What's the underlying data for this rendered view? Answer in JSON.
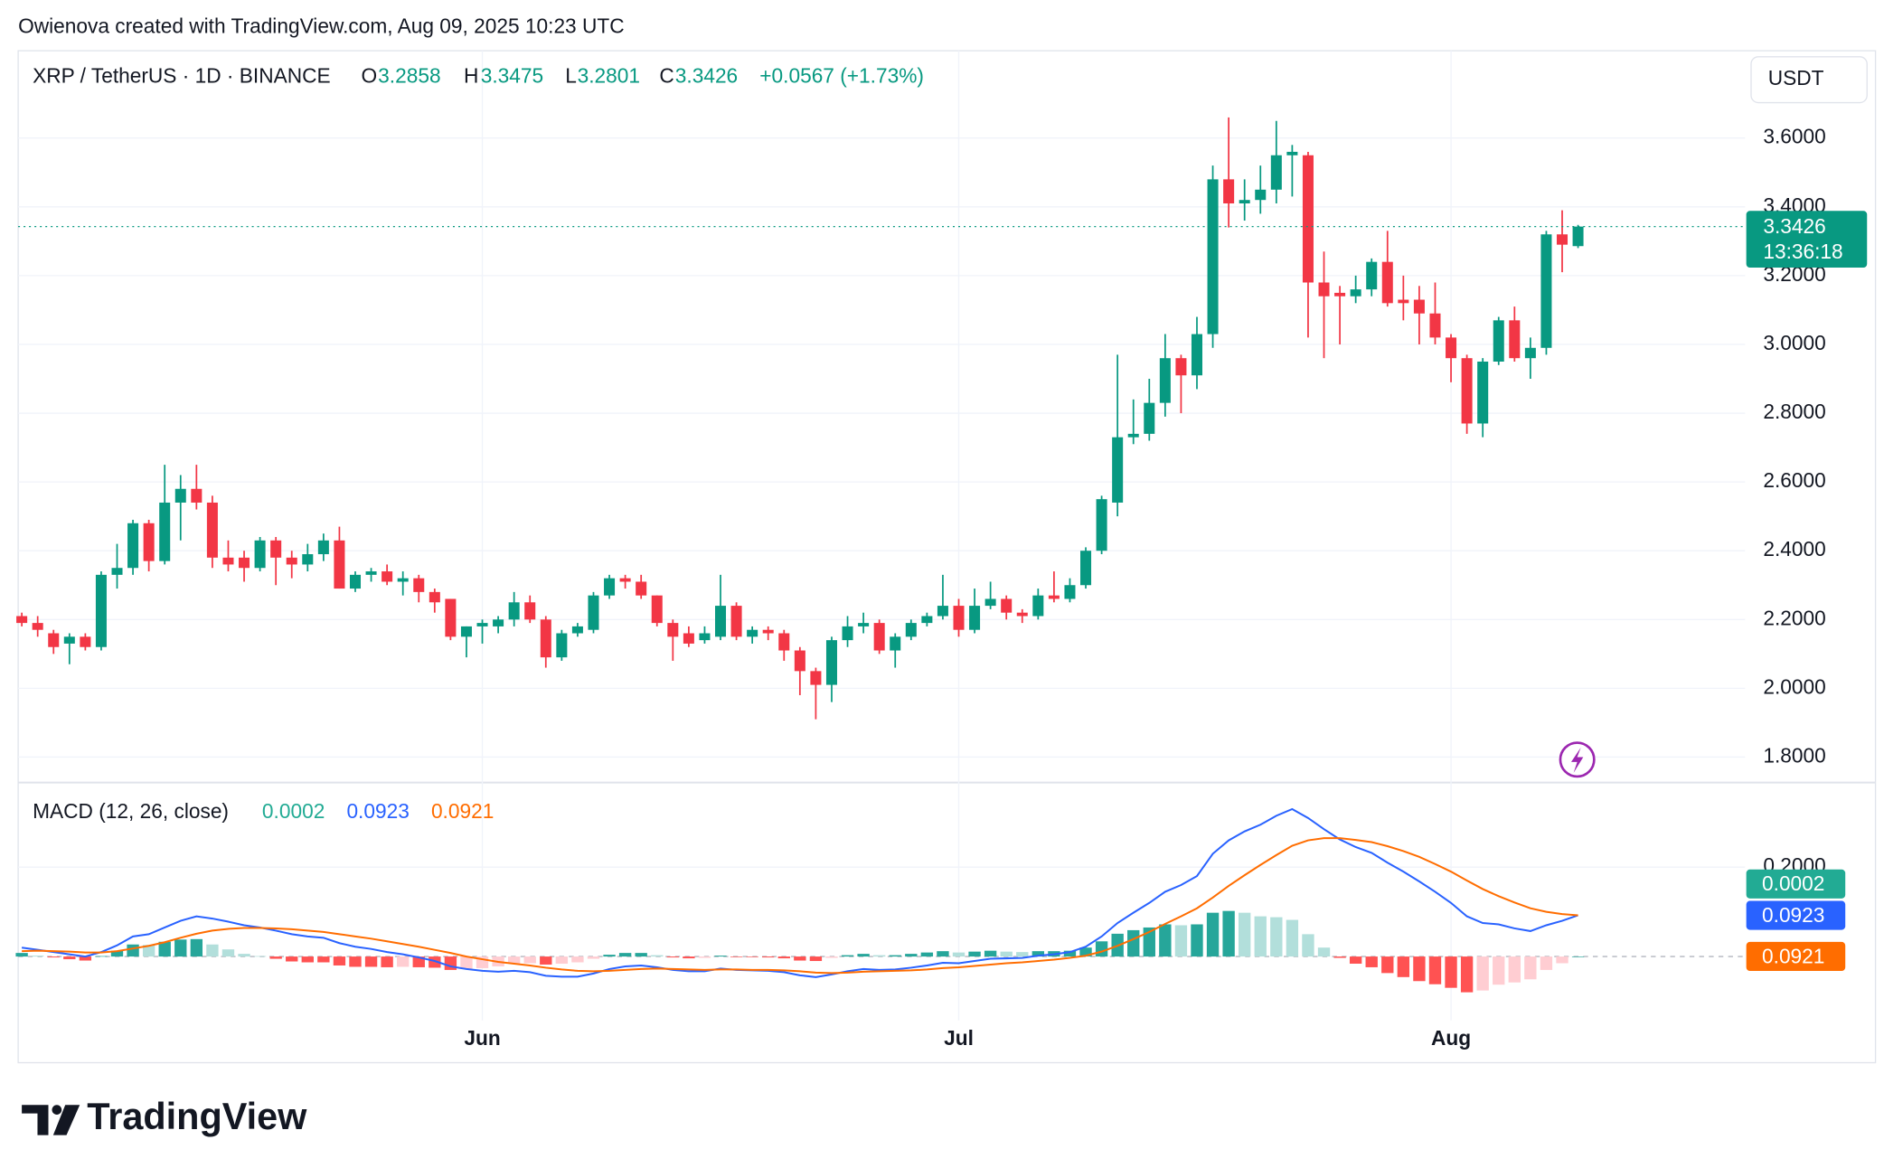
{
  "header": {
    "attribution": "Owienova created with TradingView.com, Aug 09, 2025 10:23 UTC",
    "logo": "TradingView"
  },
  "chart_data": [
    {
      "type": "candlestick",
      "title": "XRP / TetherUS · 1D · BINANCE",
      "ohlc_labels": [
        "O",
        "H",
        "L",
        "C"
      ],
      "change": "+0.0567 (+1.73%)",
      "currency": "USDT",
      "countdown": "13:36:18",
      "categories": [
        null,
        null,
        null,
        null,
        null,
        null,
        null,
        null,
        null,
        null,
        null,
        null,
        null,
        null,
        null,
        null,
        null,
        null,
        null,
        null,
        null,
        null,
        null,
        null,
        null,
        null,
        null,
        null,
        null,
        "Jun",
        null,
        null,
        null,
        null,
        null,
        null,
        null,
        null,
        null,
        null,
        null,
        null,
        null,
        null,
        null,
        null,
        null,
        null,
        null,
        null,
        null,
        null,
        null,
        null,
        null,
        null,
        null,
        null,
        null,
        "Jul",
        null,
        null,
        null,
        null,
        null,
        null,
        null,
        null,
        null,
        null,
        null,
        null,
        null,
        null,
        null,
        null,
        null,
        null,
        null,
        null,
        null,
        null,
        null,
        null,
        null,
        null,
        null,
        null,
        null,
        null,
        "Aug",
        null,
        null,
        null,
        null,
        null,
        null,
        null,
        null
      ],
      "open": [
        2.21,
        2.19,
        2.16,
        2.13,
        2.15,
        2.12,
        2.33,
        2.35,
        2.48,
        2.37,
        2.54,
        2.58,
        2.54,
        2.38,
        2.38,
        2.35,
        2.43,
        2.38,
        2.36,
        2.39,
        2.43,
        2.29,
        2.33,
        2.34,
        2.31,
        2.32,
        2.28,
        2.26,
        2.15,
        2.18,
        2.18,
        2.2,
        2.25,
        2.2,
        2.09,
        2.16,
        2.17,
        2.27,
        2.32,
        2.31,
        2.27,
        2.19,
        2.16,
        2.14,
        2.15,
        2.24,
        2.15,
        2.17,
        2.16,
        2.11,
        2.05,
        2.01,
        2.14,
        2.18,
        2.19,
        2.11,
        2.15,
        2.19,
        2.21,
        2.24,
        2.17,
        2.24,
        2.26,
        2.22,
        2.21,
        2.27,
        2.26,
        2.3,
        2.4,
        2.54,
        2.73,
        2.74,
        2.83,
        2.96,
        2.91,
        3.03,
        3.48,
        3.41,
        3.42,
        3.45,
        3.55,
        3.55,
        3.18,
        3.15,
        3.14,
        3.16,
        3.24,
        3.13,
        3.13,
        3.09,
        3.02,
        2.96,
        2.77,
        2.95,
        3.07,
        2.96,
        2.99,
        3.32,
        3.2858
      ],
      "high": [
        2.22,
        2.21,
        2.17,
        2.16,
        2.16,
        2.34,
        2.42,
        2.49,
        2.49,
        2.65,
        2.62,
        2.65,
        2.56,
        2.43,
        2.4,
        2.44,
        2.44,
        2.4,
        2.42,
        2.45,
        2.47,
        2.34,
        2.35,
        2.36,
        2.34,
        2.33,
        2.29,
        2.26,
        2.18,
        2.2,
        2.21,
        2.28,
        2.27,
        2.21,
        2.17,
        2.19,
        2.28,
        2.33,
        2.33,
        2.33,
        2.27,
        2.2,
        2.18,
        2.18,
        2.33,
        2.25,
        2.18,
        2.18,
        2.17,
        2.12,
        2.06,
        2.15,
        2.21,
        2.22,
        2.2,
        2.16,
        2.2,
        2.22,
        2.33,
        2.26,
        2.29,
        2.31,
        2.27,
        2.23,
        2.29,
        2.34,
        2.32,
        2.41,
        2.56,
        2.97,
        2.84,
        2.9,
        3.03,
        2.97,
        3.08,
        3.52,
        3.66,
        3.48,
        3.52,
        3.65,
        3.58,
        3.56,
        3.27,
        3.17,
        3.2,
        3.25,
        3.33,
        3.2,
        3.17,
        3.18,
        3.03,
        2.97,
        2.96,
        3.08,
        3.11,
        3.02,
        3.33,
        3.39,
        3.3475
      ],
      "low": [
        2.18,
        2.15,
        2.1,
        2.07,
        2.11,
        2.11,
        2.29,
        2.33,
        2.34,
        2.36,
        2.43,
        2.52,
        2.35,
        2.34,
        2.31,
        2.34,
        2.3,
        2.32,
        2.34,
        2.37,
        2.29,
        2.28,
        2.31,
        2.3,
        2.27,
        2.25,
        2.22,
        2.14,
        2.09,
        2.13,
        2.16,
        2.18,
        2.19,
        2.06,
        2.08,
        2.15,
        2.16,
        2.26,
        2.29,
        2.26,
        2.18,
        2.08,
        2.12,
        2.13,
        2.14,
        2.14,
        2.13,
        2.14,
        2.08,
        1.98,
        1.91,
        1.96,
        2.12,
        2.16,
        2.1,
        2.06,
        2.14,
        2.18,
        2.2,
        2.15,
        2.16,
        2.23,
        2.2,
        2.19,
        2.2,
        2.25,
        2.25,
        2.29,
        2.39,
        2.5,
        2.71,
        2.72,
        2.79,
        2.8,
        2.87,
        2.99,
        3.34,
        3.36,
        3.38,
        3.41,
        3.43,
        3.02,
        2.96,
        3.0,
        3.12,
        3.14,
        3.11,
        3.07,
        3.0,
        3.0,
        2.89,
        2.74,
        2.73,
        2.94,
        2.95,
        2.9,
        2.97,
        3.21,
        3.2801
      ],
      "close": [
        2.19,
        2.17,
        2.12,
        2.15,
        2.12,
        2.33,
        2.35,
        2.48,
        2.37,
        2.54,
        2.58,
        2.54,
        2.38,
        2.36,
        2.35,
        2.43,
        2.38,
        2.36,
        2.39,
        2.43,
        2.29,
        2.33,
        2.34,
        2.31,
        2.32,
        2.28,
        2.25,
        2.15,
        2.18,
        2.19,
        2.2,
        2.25,
        2.2,
        2.09,
        2.16,
        2.18,
        2.27,
        2.32,
        2.31,
        2.27,
        2.19,
        2.15,
        2.13,
        2.16,
        2.24,
        2.15,
        2.17,
        2.16,
        2.11,
        2.05,
        2.01,
        2.14,
        2.18,
        2.19,
        2.11,
        2.15,
        2.19,
        2.21,
        2.24,
        2.17,
        2.24,
        2.26,
        2.22,
        2.21,
        2.27,
        2.26,
        2.3,
        2.4,
        2.55,
        2.73,
        2.74,
        2.83,
        2.96,
        2.91,
        3.03,
        3.48,
        3.41,
        3.42,
        3.45,
        3.55,
        3.56,
        3.18,
        3.14,
        3.14,
        3.16,
        3.24,
        3.12,
        3.12,
        3.09,
        3.02,
        2.96,
        2.77,
        2.95,
        3.07,
        2.96,
        2.99,
        3.32,
        3.29,
        3.3426
      ],
      "colors": {
        "up": "#089981",
        "down": "#f23645"
      },
      "ylim": [
        1.726,
        3.854
      ],
      "yticks": [
        {
          "value": 1.8,
          "label": "1.8000"
        },
        {
          "value": 2.0,
          "label": "2.0000"
        },
        {
          "value": 2.2,
          "label": "2.2000"
        },
        {
          "value": 2.4,
          "label": "2.4000"
        },
        {
          "value": 2.6,
          "label": "2.6000"
        },
        {
          "value": 2.8,
          "label": "2.8000"
        },
        {
          "value": 3.0,
          "label": "3.0000"
        },
        {
          "value": 3.2,
          "label": "3.2000"
        },
        {
          "value": 3.4,
          "label": "3.4000"
        },
        {
          "value": 3.6,
          "label": "3.6000"
        }
      ],
      "grid": true
    },
    {
      "type": "macd",
      "title": "MACD (12, 26, close)",
      "series": [
        {
          "kind": "histogram",
          "color": "#22ab94",
          "colors": [
            "#26a69a",
            "#b2dfdb",
            "#ff5252",
            "#ffcdd2"
          ],
          "values": [
            0.008,
            0.002,
            -0.002,
            -0.006,
            -0.009,
            0.001,
            0.013,
            0.027,
            0.026,
            0.033,
            0.038,
            0.039,
            0.027,
            0.016,
            0.006,
            0.001,
            -0.005,
            -0.011,
            -0.013,
            -0.013,
            -0.02,
            -0.023,
            -0.023,
            -0.024,
            -0.023,
            -0.024,
            -0.025,
            -0.03,
            -0.028,
            -0.026,
            -0.022,
            -0.016,
            -0.015,
            -0.018,
            -0.016,
            -0.013,
            -0.005,
            0.004,
            0.008,
            0.008,
            0.003,
            -0.002,
            -0.004,
            -0.003,
            0.002,
            -0.001,
            -0.001,
            -0.002,
            -0.004,
            -0.009,
            -0.01,
            -0.003,
            0.003,
            0.006,
            0.003,
            0.003,
            0.006,
            0.009,
            0.012,
            0.009,
            0.011,
            0.013,
            0.011,
            0.01,
            0.012,
            0.012,
            0.013,
            0.02,
            0.034,
            0.051,
            0.059,
            0.065,
            0.072,
            0.07,
            0.072,
            0.098,
            0.102,
            0.098,
            0.09,
            0.088,
            0.082,
            0.05,
            0.02,
            -0.003,
            -0.016,
            -0.024,
            -0.037,
            -0.046,
            -0.055,
            -0.062,
            -0.07,
            -0.08,
            -0.076,
            -0.063,
            -0.058,
            -0.051,
            -0.03,
            -0.015,
            0.0002
          ]
        },
        {
          "kind": "line",
          "color": "#2962ff",
          "values": [
            0.02,
            0.015,
            0.01,
            0.005,
            0.0,
            0.01,
            0.025,
            0.045,
            0.05,
            0.065,
            0.08,
            0.09,
            0.085,
            0.078,
            0.07,
            0.065,
            0.058,
            0.05,
            0.045,
            0.042,
            0.03,
            0.022,
            0.017,
            0.01,
            0.005,
            -0.002,
            -0.01,
            -0.022,
            -0.028,
            -0.032,
            -0.034,
            -0.032,
            -0.035,
            -0.043,
            -0.045,
            -0.045,
            -0.038,
            -0.028,
            -0.022,
            -0.02,
            -0.024,
            -0.03,
            -0.033,
            -0.033,
            -0.027,
            -0.03,
            -0.031,
            -0.032,
            -0.035,
            -0.042,
            -0.046,
            -0.04,
            -0.033,
            -0.028,
            -0.03,
            -0.029,
            -0.025,
            -0.02,
            -0.014,
            -0.015,
            -0.01,
            -0.005,
            -0.004,
            -0.003,
            0.002,
            0.005,
            0.01,
            0.022,
            0.045,
            0.075,
            0.098,
            0.12,
            0.145,
            0.16,
            0.18,
            0.23,
            0.26,
            0.28,
            0.295,
            0.315,
            0.33,
            0.31,
            0.285,
            0.262,
            0.245,
            0.232,
            0.21,
            0.19,
            0.168,
            0.145,
            0.12,
            0.09,
            0.075,
            0.072,
            0.063,
            0.057,
            0.07,
            0.08,
            0.0923
          ]
        },
        {
          "kind": "line",
          "color": "#ff6d00",
          "values": [
            0.012,
            0.013,
            0.012,
            0.011,
            0.009,
            0.009,
            0.012,
            0.018,
            0.024,
            0.032,
            0.042,
            0.051,
            0.058,
            0.062,
            0.064,
            0.064,
            0.063,
            0.061,
            0.058,
            0.055,
            0.05,
            0.045,
            0.04,
            0.034,
            0.028,
            0.022,
            0.015,
            0.008,
            0.0,
            -0.006,
            -0.012,
            -0.016,
            -0.02,
            -0.025,
            -0.029,
            -0.032,
            -0.033,
            -0.032,
            -0.03,
            -0.028,
            -0.027,
            -0.028,
            -0.029,
            -0.03,
            -0.029,
            -0.029,
            -0.03,
            -0.03,
            -0.031,
            -0.033,
            -0.036,
            -0.037,
            -0.036,
            -0.034,
            -0.033,
            -0.032,
            -0.031,
            -0.029,
            -0.026,
            -0.024,
            -0.021,
            -0.018,
            -0.015,
            -0.013,
            -0.01,
            -0.007,
            -0.003,
            0.002,
            0.011,
            0.024,
            0.039,
            0.055,
            0.073,
            0.09,
            0.108,
            0.132,
            0.158,
            0.182,
            0.205,
            0.227,
            0.248,
            0.26,
            0.265,
            0.265,
            0.261,
            0.256,
            0.247,
            0.236,
            0.223,
            0.207,
            0.19,
            0.17,
            0.151,
            0.135,
            0.121,
            0.108,
            0.1,
            0.095,
            0.0921
          ]
        }
      ],
      "ylim": [
        -0.143,
        0.384
      ],
      "yticks": [
        {
          "value": 0.2,
          "label": "0.2000"
        }
      ]
    }
  ]
}
